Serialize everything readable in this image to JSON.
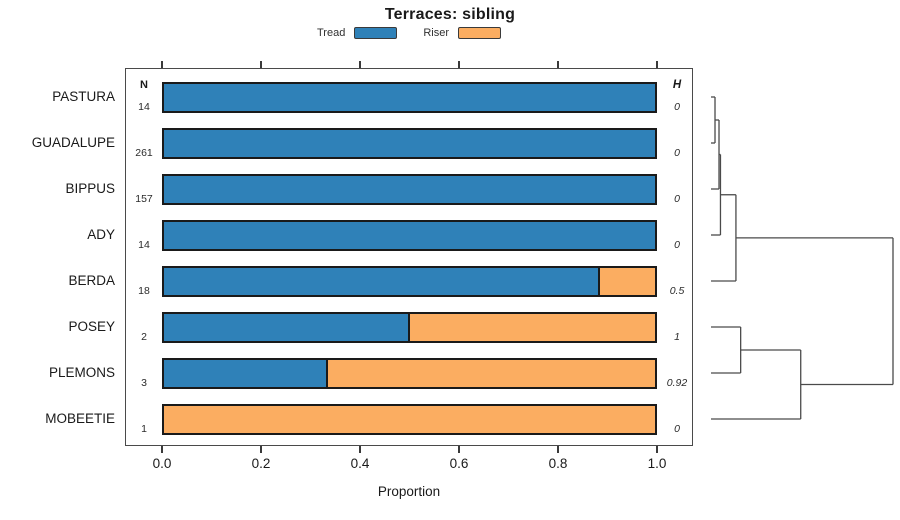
{
  "chart_data": {
    "type": "bar",
    "orientation": "horizontal-stacked",
    "title": "Terraces: sibling",
    "xlabel": "Proportion",
    "xlim": [
      0,
      1
    ],
    "x_ticks": [
      "0.0",
      "0.2",
      "0.4",
      "0.6",
      "0.8",
      "1.0"
    ],
    "x_tick_values": [
      0.0,
      0.2,
      0.4,
      0.6,
      0.8,
      1.0
    ],
    "grid": false,
    "legend_position": "top",
    "legend": [
      {
        "label": "Tread",
        "color": "#2f81b8"
      },
      {
        "label": "Riser",
        "color": "#fbad61"
      }
    ],
    "col_headers": {
      "n": "N",
      "h": "H"
    },
    "categories": [
      "PASTURA",
      "GUADALUPE",
      "BIPPUS",
      "ADY",
      "BERDA",
      "POSEY",
      "PLEMONS",
      "MOBEETIE"
    ],
    "series": [
      {
        "name": "Tread",
        "values": [
          1,
          1,
          1,
          1,
          0.889,
          0.5,
          0.333,
          0
        ]
      },
      {
        "name": "Riser",
        "values": [
          0,
          0,
          0,
          0,
          0.111,
          0.5,
          0.667,
          1
        ]
      }
    ],
    "rows": [
      {
        "label": "PASTURA",
        "n": "14",
        "tread": 1,
        "riser": 0,
        "h": "0"
      },
      {
        "label": "GUADALUPE",
        "n": "261",
        "tread": 1,
        "riser": 0,
        "h": "0"
      },
      {
        "label": "BIPPUS",
        "n": "157",
        "tread": 1,
        "riser": 0,
        "h": "0"
      },
      {
        "label": "ADY",
        "n": "14",
        "tread": 1,
        "riser": 0,
        "h": "0"
      },
      {
        "label": "BERDA",
        "n": "18",
        "tread": 0.889,
        "riser": 0.111,
        "h": "0.5"
      },
      {
        "label": "POSEY",
        "n": "2",
        "tread": 0.5,
        "riser": 0.5,
        "h": "1"
      },
      {
        "label": "PLEMONS",
        "n": "3",
        "tread": 0.333,
        "riser": 0.667,
        "h": "0.92"
      },
      {
        "label": "MOBEETIE",
        "n": "1",
        "tread": 0,
        "riser": 1,
        "h": "0"
      }
    ],
    "dendrogram": {
      "position": "right",
      "leaf_order": [
        "PASTURA",
        "GUADALUPE",
        "BIPPUS",
        "ADY",
        "BERDA",
        "POSEY",
        "PLEMONS",
        "MOBEETIE"
      ],
      "tree": {
        "height": 1.0,
        "children": [
          {
            "height": 0.137,
            "children": [
              {
                "height": 0.052,
                "children": [
                  {
                    "height": 0.044,
                    "children": [
                      {
                        "height": 0.022,
                        "children": [
                          {
                            "leaf": "PASTURA"
                          },
                          {
                            "leaf": "GUADALUPE"
                          }
                        ]
                      },
                      {
                        "leaf": "BIPPUS"
                      }
                    ]
                  },
                  {
                    "leaf": "ADY"
                  }
                ]
              },
              {
                "leaf": "BERDA"
              }
            ]
          },
          {
            "height": 0.493,
            "children": [
              {
                "height": 0.163,
                "children": [
                  {
                    "leaf": "POSEY"
                  },
                  {
                    "leaf": "PLEMONS"
                  }
                ]
              },
              {
                "leaf": "MOBEETIE"
              }
            ]
          }
        ]
      }
    },
    "line_color": "#4a4a4a",
    "bar_border_color": "#1a1a1a"
  }
}
